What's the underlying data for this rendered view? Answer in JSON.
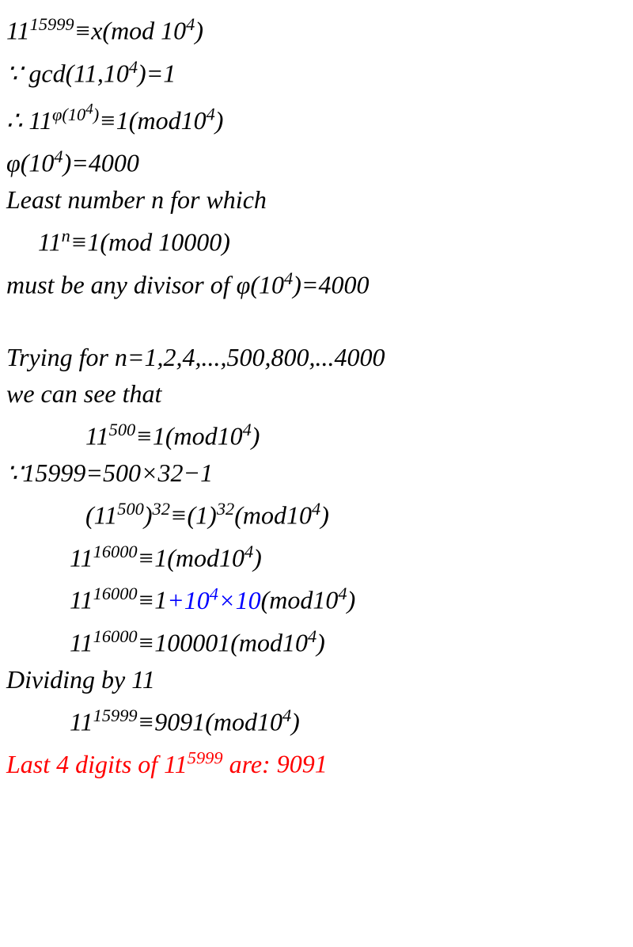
{
  "fontsize": 32,
  "lineheight": 46,
  "colors": {
    "text": "#000000",
    "red": "#ff0000",
    "blue": "#0000ff",
    "bg": "#ffffff"
  },
  "lines": {
    "l1a": "11",
    "l1b": "15999",
    "l1c": "≡x(mod 10",
    "l1d": "4",
    "l1e": ")",
    "l2a": "∵ gcd(11,10",
    "l2b": "4",
    "l2c": ")=1",
    "l3a": "∴ 11",
    "l3b": "φ(10",
    "l3b2": "4",
    "l3b3": ")",
    "l3c": "≡1(mod10",
    "l3d": "4",
    "l3e": ")",
    "l4a": "φ(10",
    "l4b": "4",
    "l4c": ")=4000",
    "l5": "Least number n for which",
    "l6a": "11",
    "l6b": "n",
    "l6c": "≡1(mod 10000)",
    "l7a": "must be any divisor of φ(10",
    "l7b": "4",
    "l7c": ")=4000",
    "l8": "Trying for n=1,2,4,...,500,800,...4000",
    "l9": "we can see that",
    "l10a": "11",
    "l10b": "500",
    "l10c": "≡1(mod10",
    "l10d": "4",
    "l10e": ")",
    "l11": "∵15999=500×32−1",
    "l12a": "(11",
    "l12b": "500",
    "l12c": ")",
    "l12d": "32",
    "l12e": "≡(1)",
    "l12f": "32",
    "l12g": "(mod10",
    "l12h": "4",
    "l12i": ")",
    "l13a": "11",
    "l13b": "16000",
    "l13c": "≡1(mod10",
    "l13d": "4",
    "l13e": ")",
    "l14a": "11",
    "l14b": "16000",
    "l14c": "≡1",
    "l14d": "+10",
    "l14e": "4",
    "l14f": "×10",
    "l14g": "(mod10",
    "l14h": "4",
    "l14i": ")",
    "l15a": "11",
    "l15b": "16000",
    "l15c": "≡100001(mod10",
    "l15d": "4",
    "l15e": ")",
    "l16": "Dividing by 11",
    "l17a": "11",
    "l17b": "15999",
    "l17c": "≡9091(mod10",
    "l17d": "4",
    "l17e": ")",
    "l18a": " Last 4 digits of 11",
    "l18b": "5999",
    "l18c": " are: ",
    "l18d": "9091"
  }
}
